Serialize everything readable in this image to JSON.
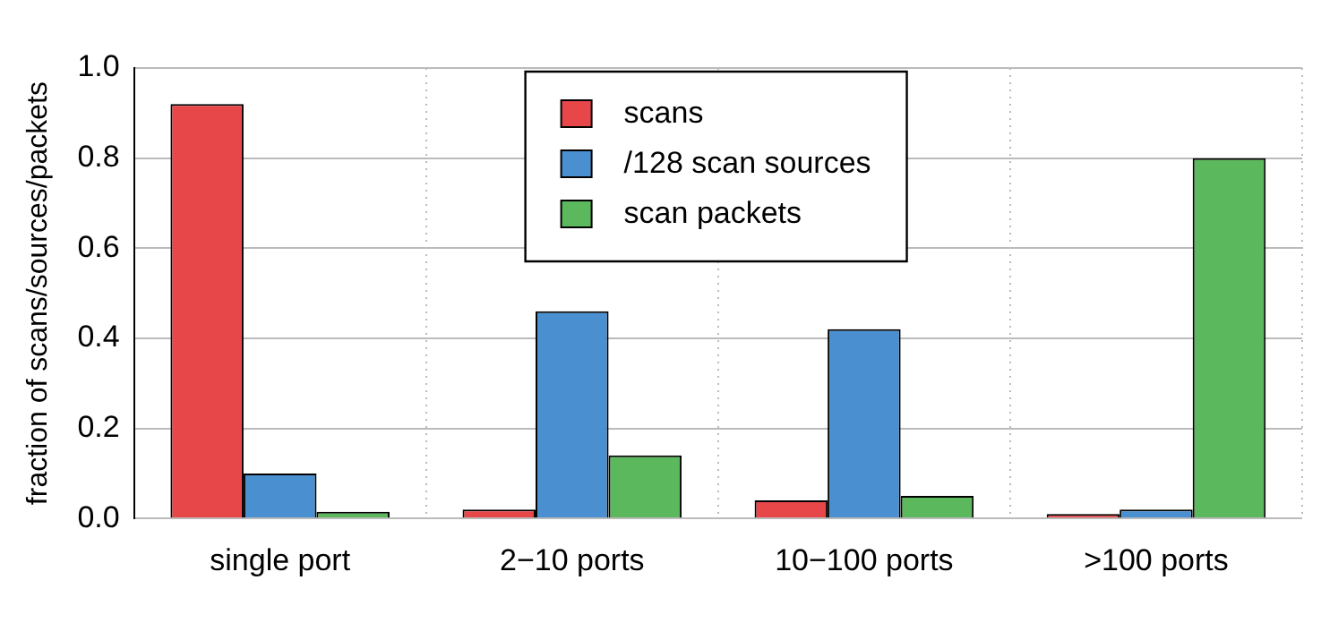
{
  "chart_data": {
    "type": "bar",
    "ylabel": "fraction of scans/sources/packets",
    "categories": [
      "single port",
      "2−10 ports",
      "10−100 ports",
      ">100 ports"
    ],
    "series": [
      {
        "name": "scans",
        "color": "#e8474a",
        "values": [
          0.92,
          0.02,
          0.04,
          0.01
        ]
      },
      {
        "name": "/128 scan sources",
        "color": "#4a8fd0",
        "values": [
          0.1,
          0.46,
          0.42,
          0.02
        ]
      },
      {
        "name": "scan packets",
        "color": "#5cb85c",
        "values": [
          0.015,
          0.14,
          0.05,
          0.8
        ]
      }
    ],
    "ylim": [
      0,
      1
    ],
    "yticks": [
      {
        "value": 0,
        "label": "0.0"
      },
      {
        "value": 0.2,
        "label": "0.2"
      },
      {
        "value": 0.4,
        "label": "0.4"
      },
      {
        "value": 0.6,
        "label": "0.6"
      },
      {
        "value": 0.8,
        "label": "0.8"
      },
      {
        "value": 1,
        "label": "1.0"
      }
    ],
    "grid": true,
    "legend": "top"
  }
}
